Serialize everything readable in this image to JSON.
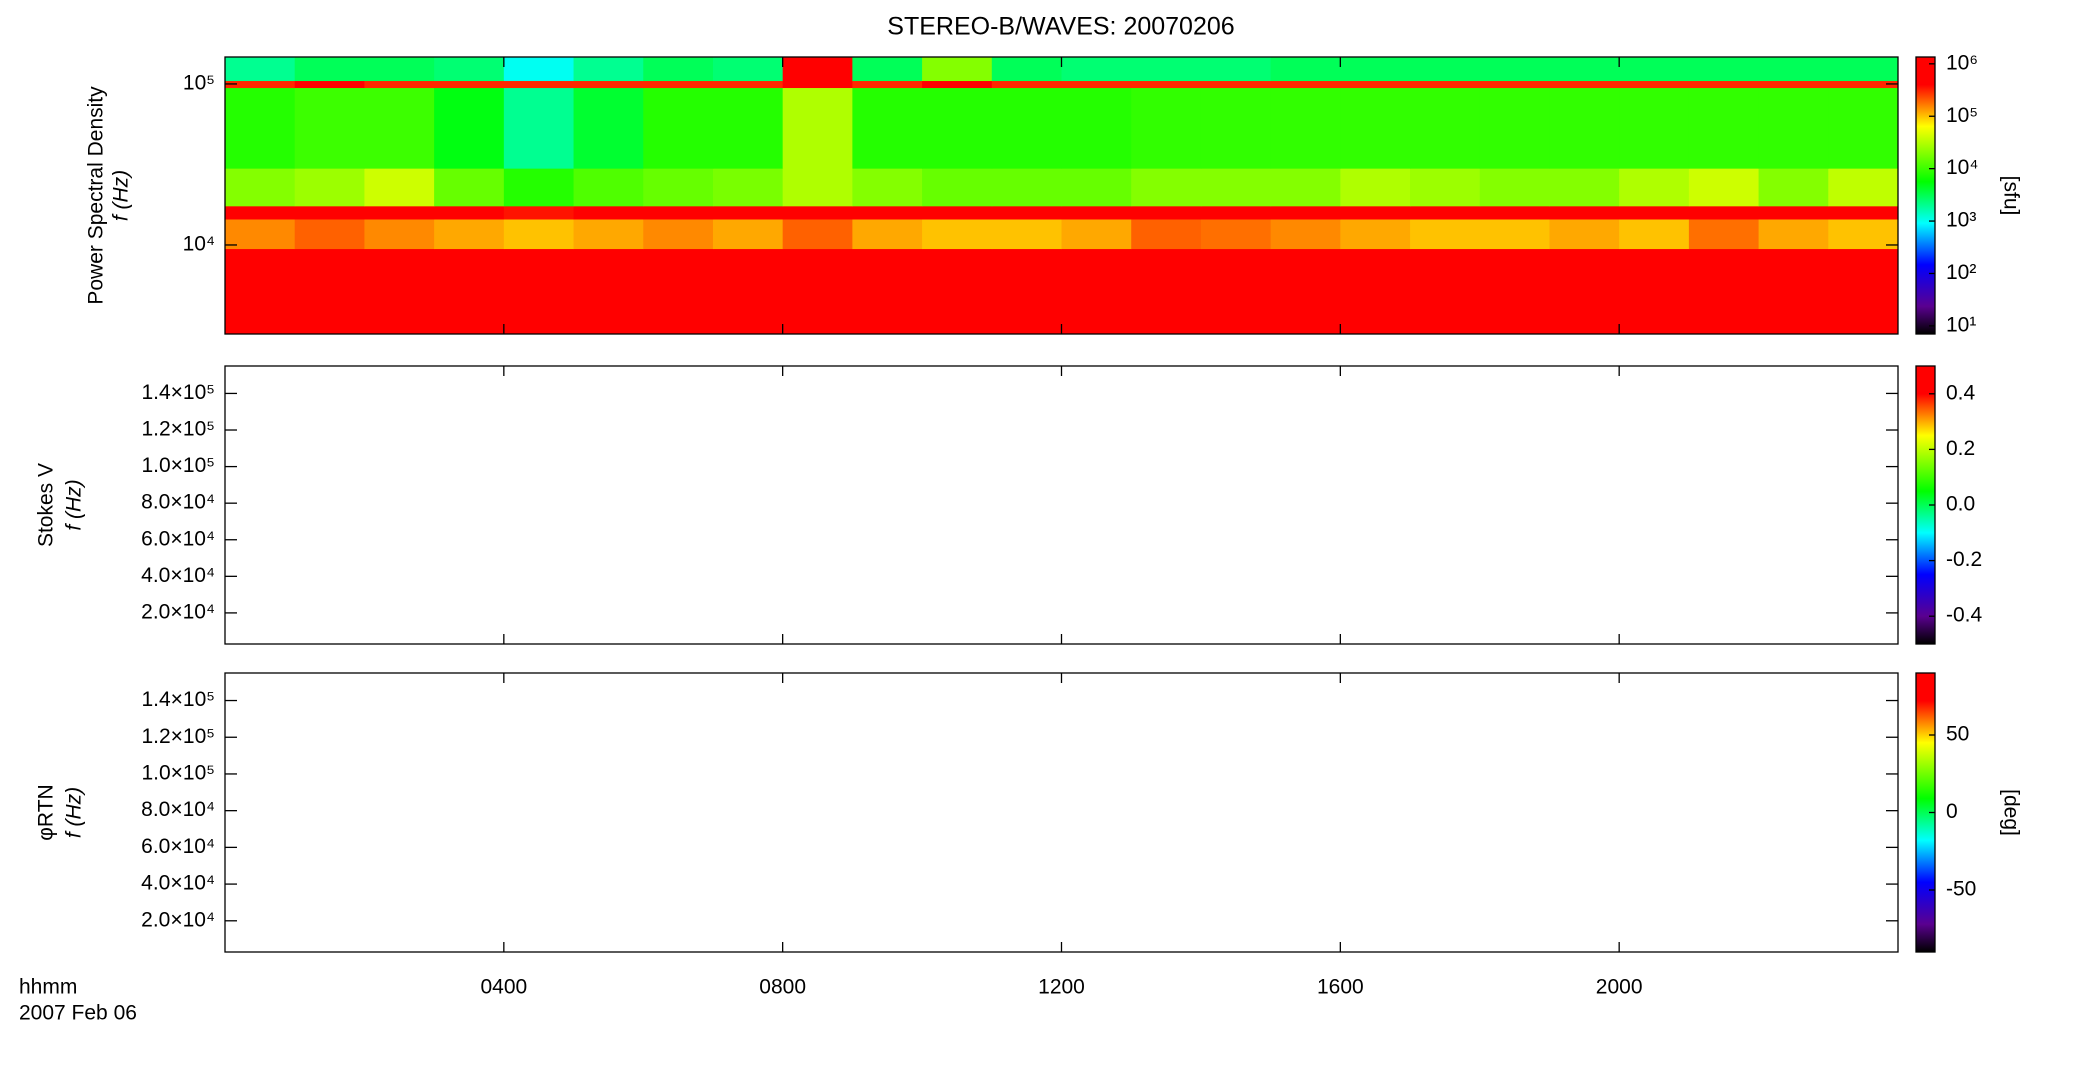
{
  "chart_data": [
    {
      "type": "heatmap",
      "title": "STEREO-B/WAVES: 20070206",
      "ylabel": [
        "Power Spectral Density",
        "f (Hz)"
      ],
      "ylog": true,
      "ylim": [
        2800,
        147000
      ],
      "yticks": [
        {
          "value": 10000,
          "label": "10⁴"
        },
        {
          "value": 100000,
          "label": "10⁵"
        }
      ],
      "xbins": [
        0,
        1,
        2,
        3,
        4,
        5,
        6,
        7,
        8,
        9,
        10,
        11,
        12,
        13,
        14,
        15,
        16,
        17,
        18,
        19,
        20,
        21,
        22,
        23,
        24
      ],
      "ybins": [
        2500,
        9500,
        14500,
        17500,
        30000,
        95000,
        105000,
        150000
      ],
      "z": [
        [
          400000,
          800000,
          900000,
          500000,
          600000,
          500000,
          400000,
          600000,
          800000,
          500000,
          400000,
          500000,
          400000,
          900000,
          800000,
          700000,
          500000,
          400000,
          500000,
          600000,
          400000,
          800000,
          500000,
          400000
        ],
        [
          150000,
          200000,
          150000,
          120000,
          100000,
          120000,
          150000,
          120000,
          200000,
          120000,
          100000,
          100000,
          120000,
          200000,
          180000,
          150000,
          120000,
          100000,
          100000,
          120000,
          100000,
          180000,
          120000,
          100000
        ],
        [
          400000,
          400000,
          400000,
          400000,
          350000,
          400000,
          400000,
          400000,
          400000,
          400000,
          400000,
          400000,
          400000,
          400000,
          400000,
          400000,
          400000,
          400000,
          400000,
          400000,
          400000,
          400000,
          400000,
          400000
        ],
        [
          20000,
          25000,
          40000,
          15000,
          8000,
          12000,
          15000,
          18000,
          30000,
          20000,
          15000,
          15000,
          15000,
          20000,
          20000,
          20000,
          30000,
          25000,
          20000,
          20000,
          30000,
          40000,
          20000,
          35000
        ],
        [
          8000,
          10000,
          10000,
          5000,
          2000,
          4000,
          8000,
          8000,
          30000,
          8000,
          8000,
          8000,
          8000,
          9000,
          9000,
          9000,
          9000,
          9000,
          9000,
          9000,
          9000,
          9000,
          9000,
          9000
        ],
        [
          300000,
          500000,
          300000,
          300000,
          300000,
          300000,
          300000,
          300000,
          1000000,
          300000,
          400000,
          300000,
          300000,
          300000,
          300000,
          300000,
          300000,
          300000,
          300000,
          300000,
          300000,
          300000,
          300000,
          300000
        ],
        [
          2000,
          3000,
          3000,
          2500,
          1000,
          2000,
          3000,
          2500,
          1000000,
          3000,
          20000,
          3000,
          2500,
          2500,
          2500,
          3000,
          3000,
          3000,
          3000,
          3000,
          3000,
          3000,
          3000,
          3000
        ]
      ],
      "zlog": true,
      "zlim": [
        7,
        1350000
      ],
      "zticks": [
        {
          "value": 10,
          "label": "10¹"
        },
        {
          "value": 100,
          "label": "10²"
        },
        {
          "value": 1000,
          "label": "10³"
        },
        {
          "value": 10000,
          "label": "10⁴"
        },
        {
          "value": 100000,
          "label": "10⁵"
        },
        {
          "value": 1000000,
          "label": "10⁶"
        }
      ],
      "zlabel": "[sfu]"
    },
    {
      "type": "heatmap",
      "ylabel": [
        "Stokes V",
        "f (Hz)"
      ],
      "ylim": [
        3000,
        155000
      ],
      "yticks": [
        {
          "value": 20000,
          "label": "2.0×10⁴"
        },
        {
          "value": 40000,
          "label": "4.0×10⁴"
        },
        {
          "value": 60000,
          "label": "6.0×10⁴"
        },
        {
          "value": 80000,
          "label": "8.0×10⁴"
        },
        {
          "value": 100000,
          "label": "1.0×10⁵"
        },
        {
          "value": 120000,
          "label": "1.2×10⁵"
        },
        {
          "value": 140000,
          "label": "1.4×10⁵"
        }
      ],
      "zlim": [
        -0.5,
        0.5
      ],
      "zticks": [
        -0.4,
        -0.2,
        {
          "value": 0,
          "label": "0.0"
        },
        0.2,
        0.4
      ]
    },
    {
      "type": "heatmap",
      "ylabel": [
        "φRTN",
        "f (Hz)"
      ],
      "ylim": [
        3000,
        155000
      ],
      "yticks": [
        {
          "value": 20000,
          "label": "2.0×10⁴"
        },
        {
          "value": 40000,
          "label": "4.0×10⁴"
        },
        {
          "value": 60000,
          "label": "6.0×10⁴"
        },
        {
          "value": 80000,
          "label": "8.0×10⁴"
        },
        {
          "value": 100000,
          "label": "1.0×10⁵"
        },
        {
          "value": 120000,
          "label": "1.2×10⁵"
        },
        {
          "value": 140000,
          "label": "1.4×10⁵"
        }
      ],
      "zlim": [
        -90,
        90
      ],
      "zticks": [
        -50,
        0,
        50
      ],
      "zlabel": "[deg]",
      "xlim": [
        0,
        24
      ],
      "xticks": [
        {
          "value": 4,
          "label": "0400"
        },
        {
          "value": 8,
          "label": "0800"
        },
        {
          "value": 12,
          "label": "1200"
        },
        {
          "value": 16,
          "label": "1600"
        },
        {
          "value": 20,
          "label": "2000"
        }
      ],
      "xlabel": [
        "hhmm",
        "2007 Feb 06"
      ]
    }
  ]
}
